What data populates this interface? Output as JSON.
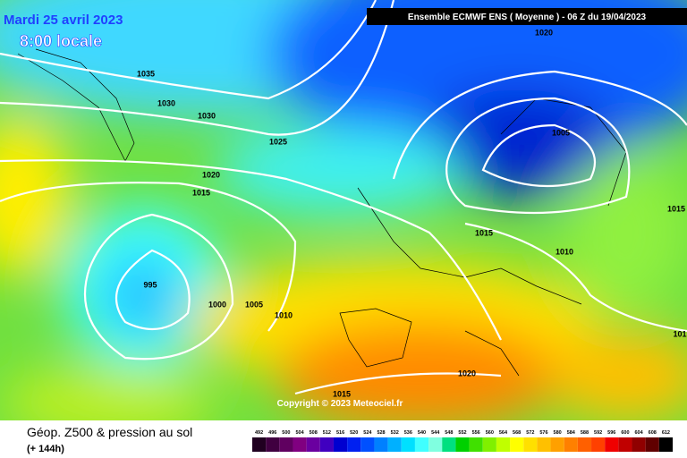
{
  "header": {
    "date": "Mardi 25 avril 2023",
    "time": "8:00 locale",
    "model": "Ensemble ECMWF ENS  ( Moyenne )  -  06 Z du 19/04/2023"
  },
  "isobar_labels": [
    "1035",
    "1030",
    "1030",
    "1025",
    "1020",
    "1015",
    "995",
    "1000",
    "1005",
    "1010",
    "1020",
    "1005",
    "1015",
    "1010",
    "1015",
    "101",
    "1020",
    "1015"
  ],
  "copyright": "Copyright © 2023 Meteociel.fr",
  "footer": {
    "title": "Géop. Z500 & pression au sol",
    "subtitle": "(+ 144h)"
  },
  "scale": {
    "labels": [
      492,
      496,
      500,
      504,
      508,
      512,
      516,
      520,
      524,
      528,
      532,
      536,
      540,
      544,
      548,
      552,
      556,
      560,
      564,
      568,
      572,
      576,
      580,
      584,
      588,
      592,
      596,
      600,
      604,
      608,
      612
    ],
    "colors": [
      "#200020",
      "#400040",
      "#600060",
      "#800080",
      "#6a00a0",
      "#4000c0",
      "#0000d0",
      "#0020f0",
      "#0050ff",
      "#0080ff",
      "#00b0ff",
      "#00e0ff",
      "#40ffff",
      "#80ffe0",
      "#00e080",
      "#00d000",
      "#40e000",
      "#80f000",
      "#c0ff00",
      "#ffff00",
      "#ffe000",
      "#ffc000",
      "#ffa000",
      "#ff8000",
      "#ff6000",
      "#ff4000",
      "#f00000",
      "#c00000",
      "#900000",
      "#600000",
      "#000000"
    ]
  }
}
